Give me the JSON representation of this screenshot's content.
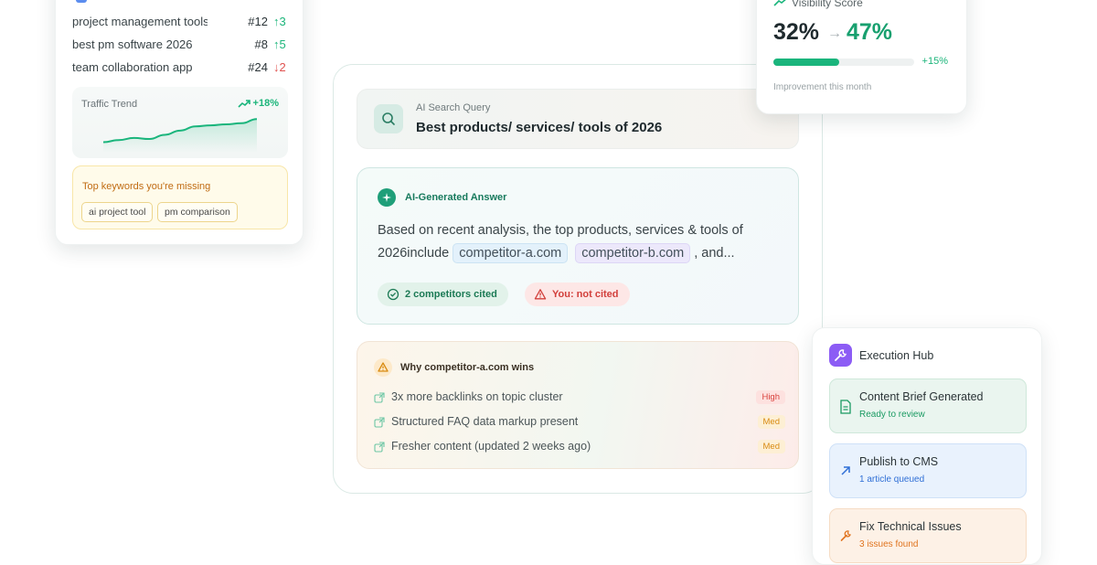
{
  "keywords": {
    "rows": [
      {
        "term": "project management tools",
        "rank": "#12",
        "delta": "↑3",
        "trend": "up"
      },
      {
        "term": "best pm software 2026",
        "rank": "#8",
        "delta": "↑5",
        "trend": "up"
      },
      {
        "term": "team collaboration app",
        "rank": "#24",
        "delta": "↓2",
        "trend": "down"
      }
    ],
    "traffic": {
      "title": "Traffic Trend",
      "delta": "+18%",
      "chart_data": {
        "type": "area",
        "x": [
          0,
          1,
          2,
          3,
          4,
          5,
          6,
          7,
          8,
          9,
          10
        ],
        "y": [
          10,
          12,
          14,
          13,
          17,
          21,
          25,
          26,
          27,
          28,
          32
        ],
        "ylim": [
          0,
          40
        ]
      }
    },
    "missing": {
      "title": "Top keywords you're missing",
      "chips": [
        "ai project tool",
        "pm comparison"
      ]
    }
  },
  "query": {
    "label": "AI Search Query",
    "text": "Best products/ services/ tools of 2026"
  },
  "answer": {
    "title": "AI-Generated Answer",
    "line1": "Based on recent analysis, the top products, services & tools of",
    "line2_prefix": "2026include",
    "competitor_a": "competitor-a.com",
    "competitor_b": "competitor-b.com",
    "line2_suffix": ", and...",
    "badge_cited": "2 competitors cited",
    "badge_not_cited": "You: not cited"
  },
  "why": {
    "title": "Why competitor-a.com wins",
    "reasons": [
      {
        "text": "3x more backlinks on topic cluster",
        "priority": "High",
        "level": "high"
      },
      {
        "text": "Structured FAQ data markup present",
        "priority": "Med",
        "level": "med"
      },
      {
        "text": "Fresher content (updated 2 weeks ago)",
        "priority": "Med",
        "level": "med"
      }
    ]
  },
  "visibility": {
    "title": "Visibility Score",
    "from": "32%",
    "arrow": "→",
    "to": "47%",
    "progress": 0.47,
    "delta": "+15%",
    "note": "Improvement this month"
  },
  "hub": {
    "title": "Execution Hub",
    "tasks": [
      {
        "title": "Content Brief Generated",
        "sub": "Ready to review",
        "color": "#1a9a62",
        "icon": "document-icon"
      },
      {
        "title": "Publish to CMS",
        "sub": "1 article queued",
        "color": "#2f6fd6",
        "icon": "arrow-up-right-icon"
      },
      {
        "title": "Fix Technical Issues",
        "sub": "3 issues found",
        "color": "#e0741f",
        "icon": "wrench-icon"
      }
    ]
  },
  "colors": {
    "accent_green": "#1ab57c",
    "danger_red": "#e0524f",
    "hub_purple": "#8c5cf5"
  }
}
